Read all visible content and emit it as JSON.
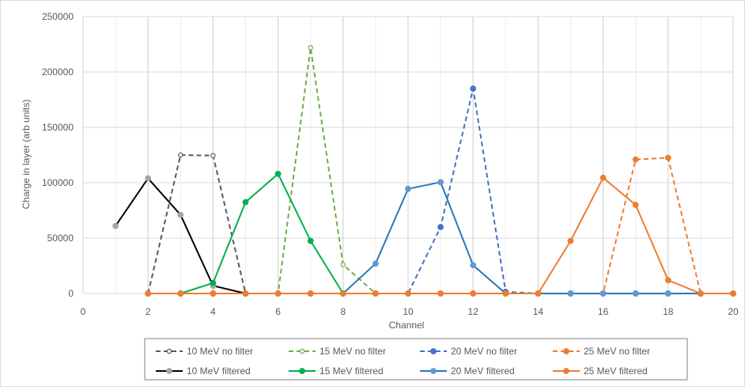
{
  "chart_data": {
    "type": "line",
    "xlabel": "Channel",
    "ylabel": "Charge in layer (arb units)",
    "xlim": [
      0,
      20
    ],
    "ylim": [
      0,
      250000
    ],
    "x_ticks": [
      "0",
      "2",
      "4",
      "6",
      "8",
      "10",
      "12",
      "14",
      "16",
      "18",
      "20"
    ],
    "y_ticks": [
      "0",
      "50000",
      "100000",
      "150000",
      "200000",
      "250000"
    ],
    "grid": "both",
    "legend_position": "bottom",
    "series": [
      {
        "name": "10 MeV no filter",
        "color": "#595959",
        "dashed": true,
        "marker": "open",
        "x": [
          2,
          3,
          4,
          5,
          6,
          7,
          8,
          9,
          10,
          11,
          12,
          13,
          14,
          15,
          16,
          17,
          18,
          19,
          20
        ],
        "y": [
          0,
          125000,
          124500,
          0,
          0,
          0,
          0,
          0,
          0,
          0,
          0,
          0,
          0,
          0,
          0,
          0,
          0,
          0,
          0
        ]
      },
      {
        "name": "15 MeV no filter",
        "color": "#70ad47",
        "dashed": true,
        "marker": "open",
        "x": [
          2,
          3,
          4,
          5,
          6,
          7,
          8,
          9,
          10,
          11,
          12,
          13,
          14,
          15,
          16,
          17,
          18,
          19,
          20
        ],
        "y": [
          0,
          0,
          0,
          0,
          0,
          222000,
          26000,
          0,
          0,
          0,
          0,
          0,
          0,
          0,
          0,
          0,
          0,
          0,
          0
        ]
      },
      {
        "name": "20 MeV no filter",
        "color": "#4472c4",
        "dashed": true,
        "marker": "filled",
        "x": [
          2,
          3,
          4,
          5,
          6,
          7,
          8,
          9,
          10,
          11,
          12,
          13,
          14,
          15,
          16,
          17,
          18,
          19,
          20
        ],
        "y": [
          0,
          0,
          0,
          0,
          0,
          0,
          0,
          0,
          0,
          60000,
          185000,
          1500,
          0,
          0,
          0,
          0,
          0,
          0,
          0
        ]
      },
      {
        "name": "25 MeV no filter",
        "color": "#ed7d31",
        "dashed": true,
        "marker": "filled",
        "x": [
          2,
          3,
          4,
          5,
          6,
          7,
          8,
          9,
          10,
          11,
          12,
          13,
          14,
          15,
          16,
          17,
          18,
          19,
          20
        ],
        "y": [
          0,
          0,
          0,
          0,
          0,
          0,
          0,
          0,
          0,
          0,
          0,
          0,
          0,
          0,
          0,
          121000,
          122500,
          0,
          0
        ]
      },
      {
        "name": "10 MeV filtered",
        "color": "#000000",
        "dashed": false,
        "marker": "filled",
        "marker_color": "#a5a5a5",
        "x": [
          1,
          2,
          3,
          4,
          5
        ],
        "y": [
          61000,
          104000,
          71000,
          7000,
          0
        ]
      },
      {
        "name": "15 MeV filtered",
        "color": "#00b050",
        "dashed": false,
        "marker": "filled",
        "x": [
          2,
          3,
          4,
          5,
          6,
          7,
          8
        ],
        "y": [
          0,
          0,
          9500,
          82500,
          108000,
          47500,
          0
        ]
      },
      {
        "name": "20 MeV filtered",
        "color": "#2e75b6",
        "dashed": false,
        "marker": "filled",
        "marker_color": "#5b9bd5",
        "x": [
          8,
          9,
          10,
          11,
          12,
          13,
          14,
          15,
          16,
          17,
          18,
          19,
          20
        ],
        "y": [
          0,
          27000,
          94500,
          100500,
          25500,
          0,
          0,
          0,
          0,
          0,
          0,
          0,
          0
        ]
      },
      {
        "name": "25 MeV filtered",
        "color": "#ed7d31",
        "dashed": false,
        "marker": "filled",
        "x": [
          2,
          3,
          4,
          5,
          6,
          7,
          8,
          9,
          10,
          11,
          12,
          13,
          14,
          15,
          16,
          17,
          18,
          19,
          20
        ],
        "y": [
          0,
          0,
          0,
          0,
          0,
          0,
          0,
          0,
          0,
          0,
          0,
          0,
          0,
          47500,
          104500,
          80000,
          12000,
          0,
          0
        ]
      }
    ]
  }
}
